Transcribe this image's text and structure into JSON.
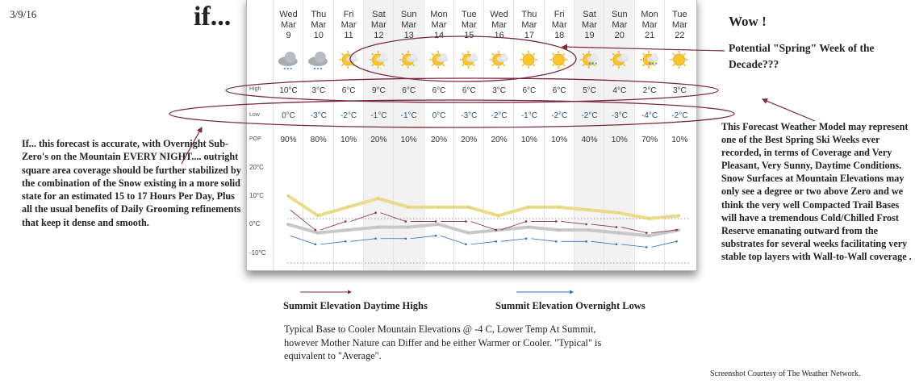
{
  "date_label": "3/9/16",
  "headline": "if...",
  "wow": "Wow !",
  "spring_note": "Potential \"Spring\" Week of the Decade???",
  "left_note": "If... this forecast is accurate, with Overnight Sub-Zero's on the Mountain EVERY NIGHT.... outright square area coverage should be further stabilized by the combination of the Snow existing in a more solid state for an estimated 15 to 17 Hours Per Day, Plus all the usual benefits of Daily Grooming refinements that keep it dense and smooth.",
  "right_note": "This Forecast Weather Model may represent one of the Best Spring Ski Weeks ever recorded, in terms of Coverage and Very Pleasant, Very Sunny, Daytime Conditions. Snow Surfaces at Mountain Elevations may only see a degree or two above Zero and we think the very well Compacted Trail Bases will have a tremendous Cold/Chilled Frost Reserve emanating outward from the substrates for several weeks facilitating very stable top layers with Wall-to-Wall coverage .",
  "legend": {
    "highs": "Summit Elevation Daytime Highs",
    "lows": "Summit Elevation Overnight Lows",
    "highs_color": "#8b2a3c",
    "lows_color": "#2f6fc0"
  },
  "bottom_note": "Typical Base to Cooler Mountain Elevations @ -4 C, Lower Temp At Summit, however Mother Nature can Differ and be either Warmer or Cooler. \"Typical\" is equivalent to \"Average\".",
  "credit": "Screenshot Courtesy of The Weather Network.",
  "forecast": {
    "row_labels": {
      "high": "High",
      "low": "Low",
      "pop": "POP"
    },
    "y_ticks": [
      "20°C",
      "10°C",
      "0°C",
      "-10°C"
    ],
    "days": [
      {
        "dow": "Wed",
        "mon": "Mar",
        "d": "9",
        "icon": "rain-snow-cloud",
        "high": "10°C",
        "low": "0°C",
        "pop": "90%",
        "weekend": false
      },
      {
        "dow": "Thu",
        "mon": "Mar",
        "d": "10",
        "icon": "snow-cloud",
        "high": "3°C",
        "low": "-3°C",
        "pop": "80%",
        "weekend": false
      },
      {
        "dow": "Fri",
        "mon": "Mar",
        "d": "11",
        "icon": "sun-cloud",
        "high": "6°C",
        "low": "-2°C",
        "pop": "10%",
        "weekend": false
      },
      {
        "dow": "Sat",
        "mon": "Mar",
        "d": "12",
        "icon": "sun-cloud",
        "high": "9°C",
        "low": "-1°C",
        "pop": "20%",
        "weekend": true
      },
      {
        "dow": "Sun",
        "mon": "Mar",
        "d": "13",
        "icon": "sun-cloud",
        "high": "6°C",
        "low": "-1°C",
        "pop": "10%",
        "weekend": true
      },
      {
        "dow": "Mon",
        "mon": "Mar",
        "d": "14",
        "icon": "sun-cloud",
        "high": "6°C",
        "low": "0°C",
        "pop": "20%",
        "weekend": false
      },
      {
        "dow": "Tue",
        "mon": "Mar",
        "d": "15",
        "icon": "sun-cloud",
        "high": "6°C",
        "low": "-3°C",
        "pop": "20%",
        "weekend": false
      },
      {
        "dow": "Wed",
        "mon": "Mar",
        "d": "16",
        "icon": "sun-cloud",
        "high": "3°C",
        "low": "-2°C",
        "pop": "20%",
        "weekend": false
      },
      {
        "dow": "Thu",
        "mon": "Mar",
        "d": "17",
        "icon": "sun",
        "high": "6°C",
        "low": "-1°C",
        "pop": "10%",
        "weekend": false
      },
      {
        "dow": "Fri",
        "mon": "Mar",
        "d": "18",
        "icon": "sun",
        "high": "6°C",
        "low": "-2°C",
        "pop": "10%",
        "weekend": false
      },
      {
        "dow": "Sat",
        "mon": "Mar",
        "d": "19",
        "icon": "sun-cloud-flurries",
        "high": "5°C",
        "low": "-2°C",
        "pop": "40%",
        "weekend": true
      },
      {
        "dow": "Sun",
        "mon": "Mar",
        "d": "20",
        "icon": "sun-cloud",
        "high": "4°C",
        "low": "-3°C",
        "pop": "10%",
        "weekend": true
      },
      {
        "dow": "Mon",
        "mon": "Mar",
        "d": "21",
        "icon": "sun-cloud-flurries",
        "high": "2°C",
        "low": "-4°C",
        "pop": "70%",
        "weekend": false
      },
      {
        "dow": "Tue",
        "mon": "Mar",
        "d": "22",
        "icon": "sun",
        "high": "3°C",
        "low": "-2°C",
        "pop": "10%",
        "weekend": false
      }
    ],
    "colors": {
      "high_line": "#e8dc8a",
      "low_line": "#c8c8c8",
      "weekend_bg": "#f2f2f2"
    }
  }
}
